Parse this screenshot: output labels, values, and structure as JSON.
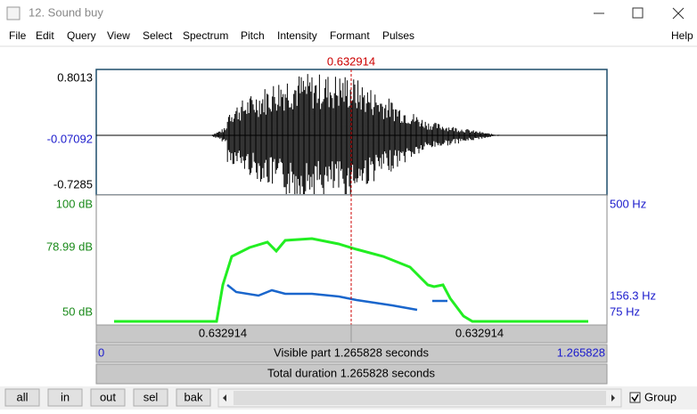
{
  "window": {
    "title": "12. Sound buy"
  },
  "menu": [
    "File",
    "Edit",
    "Query",
    "View",
    "Select",
    "Spectrum",
    "Pitch",
    "Intensity",
    "Formant",
    "Pulses",
    "Help"
  ],
  "cursor": {
    "time": "0.632914"
  },
  "waveform": {
    "max": "0.8013",
    "middle": "-0.07092",
    "min": "-0.7285"
  },
  "intensity": {
    "top": "100 dB",
    "cursor": "78.99 dB",
    "bottom": "50 dB"
  },
  "pitch": {
    "top": "500 Hz",
    "cursor": "156.3 Hz",
    "bottom": "75 Hz"
  },
  "bars": {
    "left_part": "0.632914",
    "right_part": "0.632914",
    "visible_start": "0",
    "visible": "Visible part 1.265828 seconds",
    "visible_end": "1.265828",
    "total": "Total duration 1.265828 seconds"
  },
  "buttons": [
    "all",
    "in",
    "out",
    "sel",
    "bak"
  ],
  "group": "Group"
}
